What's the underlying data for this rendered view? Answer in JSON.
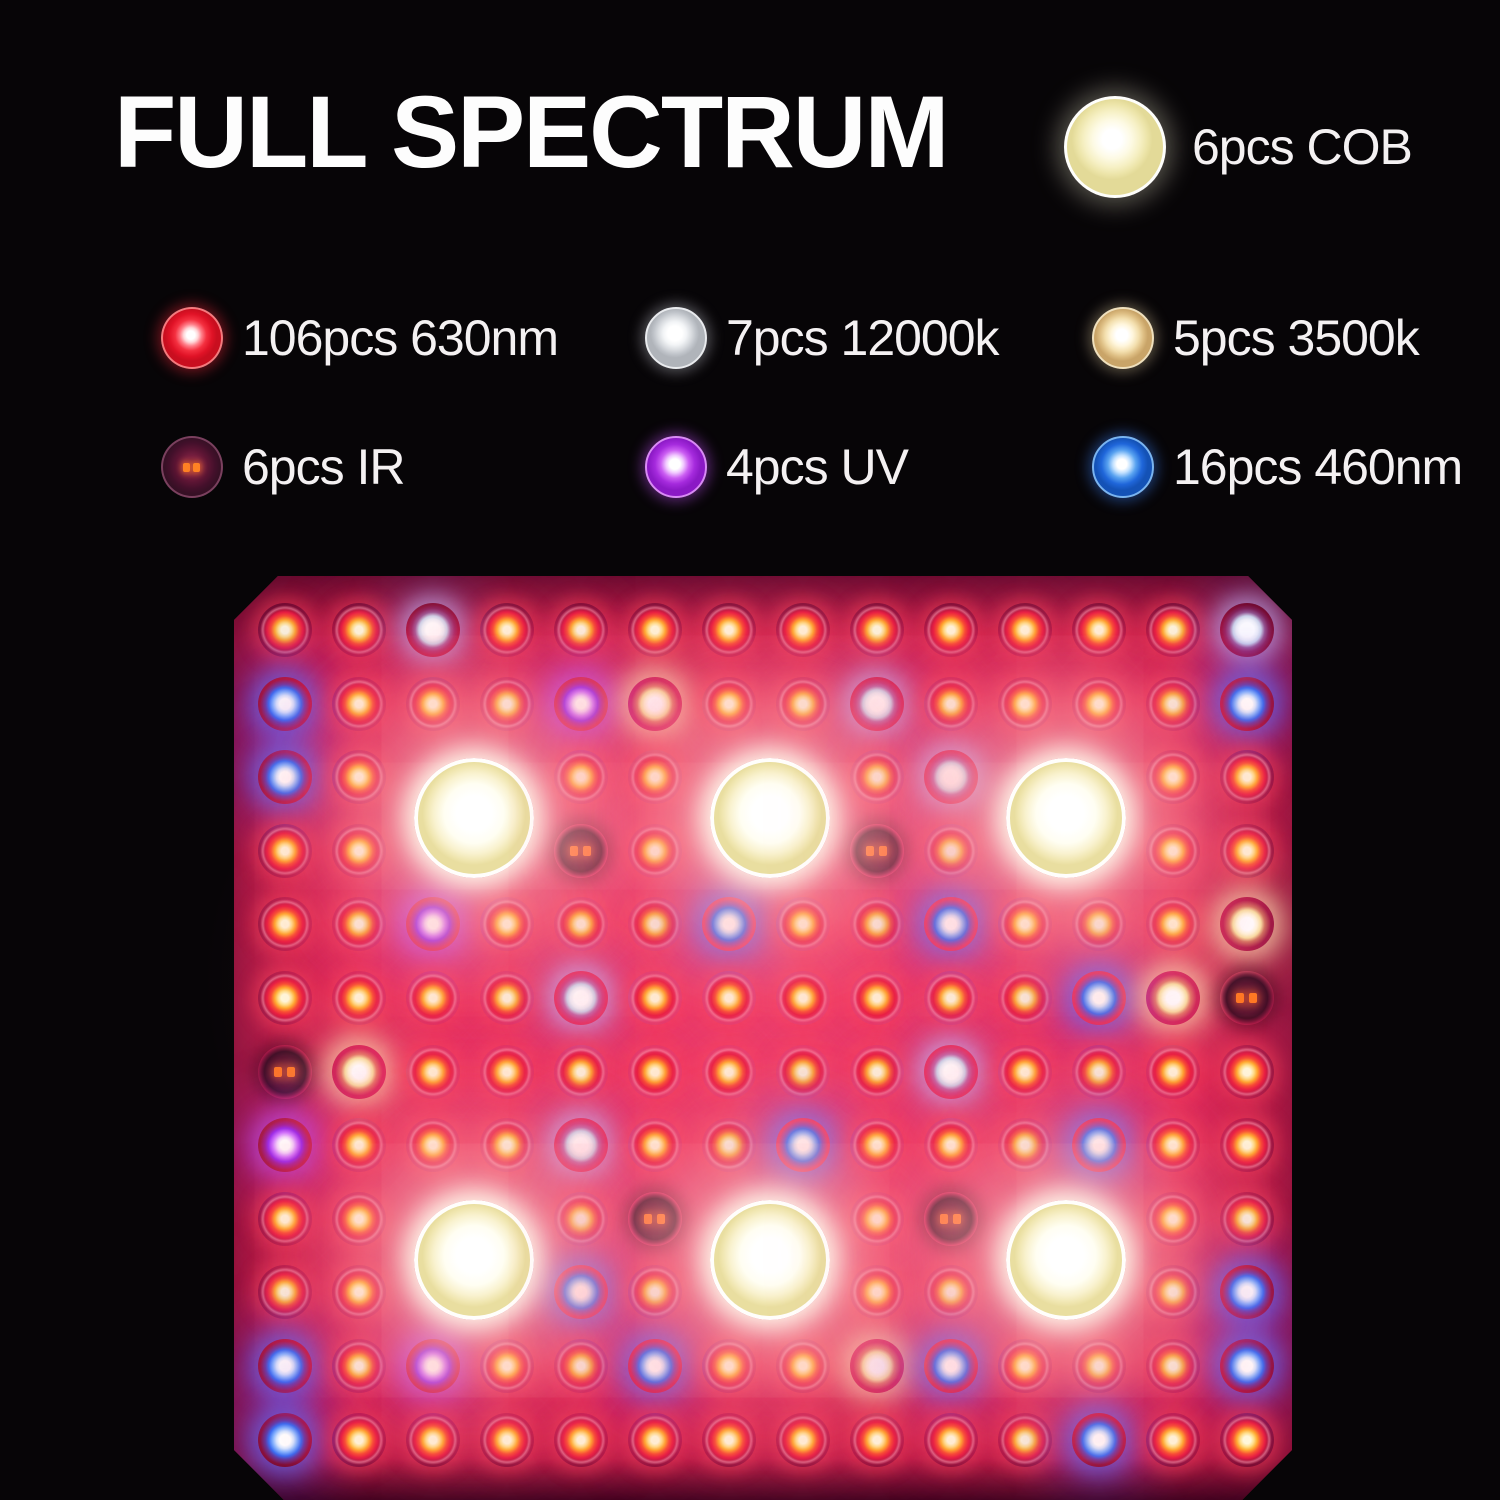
{
  "title": "FULL SPECTRUM",
  "legend": {
    "cob": {
      "type": "cob",
      "label": "6pcs COB"
    },
    "items": [
      {
        "type": "red",
        "label": "106pcs 630nm"
      },
      {
        "type": "cool-white",
        "label": "7pcs 12000k"
      },
      {
        "type": "warm-white",
        "label": "5pcs 3500k"
      },
      {
        "type": "ir",
        "label": "6pcs IR"
      },
      {
        "type": "uv",
        "label": "4pcs UV"
      },
      {
        "type": "blue",
        "label": "16pcs 460nm"
      }
    ]
  },
  "panel": {
    "led_codes": {
      "R": "red 630nm",
      "W": "cool white 12000k",
      "C": "warm white 3500k",
      "B": "blue 460nm",
      "U": "UV",
      "I": "IR",
      "X": "covered by COB"
    },
    "grid": [
      "RRWRRRRRRRRRRW",
      "BRRRUCRRWRRRRB",
      "BRXXRRXXRWXXRR",
      "RRXXIRXXIRXXRR",
      "RRURRRBRRBRRRC",
      "RRRRWRRRRRRBCI",
      "ICRRRRRRRWRRRR",
      "URRRWRRBRRRBRR",
      "RRXXRIXXRIXXRR",
      "RRXXBRXXRRXXRB",
      "BRURRBRRCBRRRB",
      "BRRRRRRRRRRBRR"
    ],
    "cobs": [
      {
        "rows": [
          3,
          4
        ],
        "cols": [
          3,
          4
        ]
      },
      {
        "rows": [
          3,
          4
        ],
        "cols": [
          7,
          8
        ]
      },
      {
        "rows": [
          3,
          4
        ],
        "cols": [
          11,
          12
        ]
      },
      {
        "rows": [
          9,
          10
        ],
        "cols": [
          3,
          4
        ]
      },
      {
        "rows": [
          9,
          10
        ],
        "cols": [
          7,
          8
        ]
      },
      {
        "rows": [
          9,
          10
        ],
        "cols": [
          11,
          12
        ]
      }
    ],
    "counts": {
      "red": 106,
      "blue": 16,
      "cool_white": 7,
      "warm_white": 5,
      "uv": 4,
      "ir": 6,
      "cob": 6
    }
  },
  "colors": {
    "background": "#070507",
    "panel_magenta": "#d42157",
    "red_led": "#e81e42",
    "blue_led": "#3a6cf2",
    "uv_led": "#9c2cea",
    "cool_white_led": "#eef1f8",
    "warm_white_led": "#f8dfa2",
    "ir_led": "#55152f",
    "cob_led": "#fffef2",
    "text": "#fdfdfd"
  }
}
